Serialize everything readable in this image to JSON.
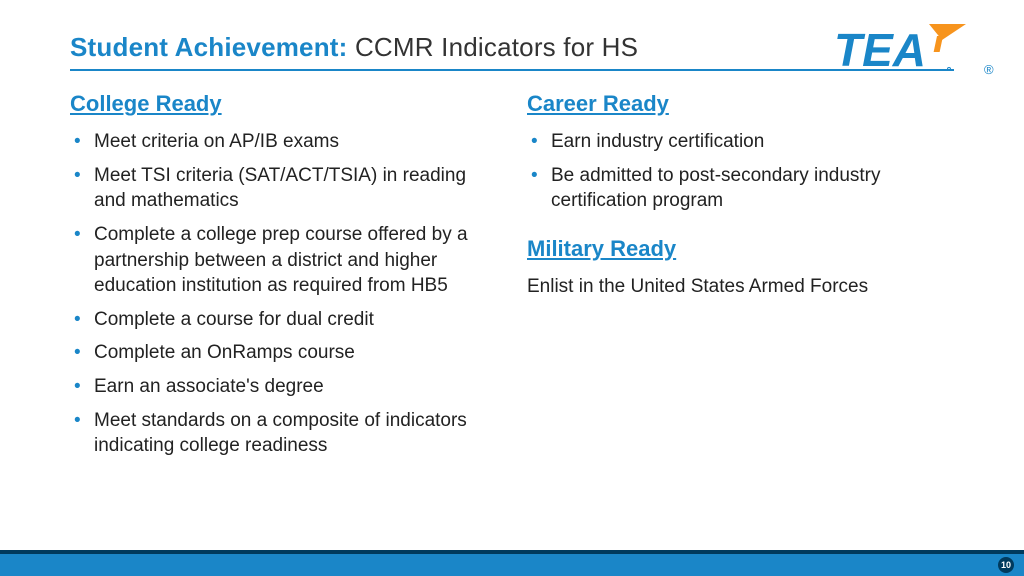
{
  "colors": {
    "accent_blue": "#1a86c8",
    "footer_blue": "#1a86c8",
    "footer_dark": "#003a5d",
    "bullet_color": "#1a86c8",
    "logo_orange": "#f7941d"
  },
  "title": {
    "bold": "Student Achievement:",
    "rest": " CCMR Indicators for HS"
  },
  "logo": {
    "text": "TEA",
    "registered": "®"
  },
  "left": {
    "college_ready": {
      "heading": "College Ready",
      "items": [
        "Meet criteria on AP/IB exams",
        "Meet TSI criteria (SAT/ACT/TSIA) in reading and mathematics",
        "Complete a college prep course offered by a partnership between a district and higher education institution as required from HB5",
        "Complete a course for dual credit",
        "Complete an OnRamps course",
        "Earn an associate's degree",
        "Meet standards on a composite of indicators indicating college readiness"
      ]
    }
  },
  "right": {
    "career_ready": {
      "heading": "Career Ready",
      "items": [
        "Earn industry certification",
        "Be admitted to post-secondary industry certification program"
      ]
    },
    "military_ready": {
      "heading": "Military Ready",
      "text": "Enlist in the United States Armed Forces"
    }
  },
  "page_number": "10"
}
